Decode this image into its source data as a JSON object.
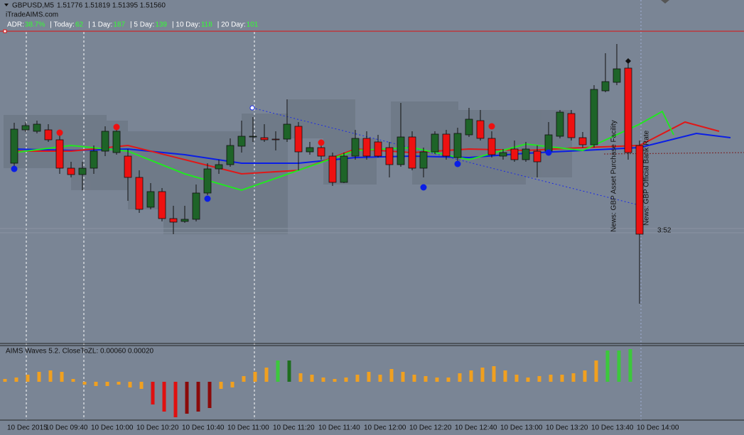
{
  "header": {
    "symbol": "GBPUSD,M5",
    "quote": "1.51776 1.51819 1.51395 1.51560",
    "site": "iTradeAIMS.com",
    "adr": [
      {
        "label": "ADR:",
        "value": "38.7%"
      },
      {
        "label": "|  Today:",
        "value": 62
      },
      {
        "label": "|  1 Day:",
        "value": 187
      },
      {
        "label": "|  5 Day:",
        "value": 139
      },
      {
        "label": "|  10 Day:",
        "value": 118
      },
      {
        "label": "|  20 Day:",
        "value": 101
      }
    ]
  },
  "chart_data": [
    {
      "type": "candlestick",
      "up_color": "#1e6428",
      "down_color": "#ee1111",
      "ylim": [
        1.5139,
        1.51827
      ],
      "categories": [
        "10 Dec 2015",
        null,
        null,
        "10 Dec 09:40",
        null,
        null,
        null,
        "10 Dec 10:00",
        null,
        null,
        null,
        "10 Dec 10:20",
        null,
        null,
        null,
        "10 Dec 10:40",
        null,
        null,
        null,
        "10 Dec 11:00",
        null,
        null,
        null,
        "10 Dec 11:20",
        null,
        null,
        null,
        "10 Dec 11:40",
        null,
        null,
        null,
        "10 Dec 12:00",
        null,
        null,
        null,
        "10 Dec 12:20",
        null,
        null,
        null,
        "10 Dec 12:40",
        null,
        null,
        null,
        "10 Dec 13:00",
        null,
        null,
        null,
        "10 Dec 13:20",
        null,
        null,
        null,
        "10 Dec 13:40",
        null,
        null,
        null,
        "10 Dec 14:00"
      ],
      "ohlc": [
        [
          1.51642,
          1.51699,
          1.51632,
          1.5169
        ],
        [
          1.51689,
          1.517,
          1.51686,
          1.51695
        ],
        [
          1.51687,
          1.51702,
          1.51684,
          1.51697
        ],
        [
          1.51689,
          1.51697,
          1.51672,
          1.51675
        ],
        [
          1.51675,
          1.51684,
          1.51627,
          1.51635
        ],
        [
          1.51635,
          1.51644,
          1.51622,
          1.51626
        ],
        [
          1.51626,
          1.51644,
          1.51604,
          1.51635
        ],
        [
          1.51635,
          1.51667,
          1.51627,
          1.51659
        ],
        [
          1.51659,
          1.51694,
          1.51652,
          1.51687
        ],
        [
          1.51657,
          1.51696,
          1.51654,
          1.51687
        ],
        [
          1.51652,
          1.51662,
          1.51589,
          1.51622
        ],
        [
          1.51622,
          1.51632,
          1.51572,
          1.51577
        ],
        [
          1.5158,
          1.51614,
          1.51577,
          1.51602
        ],
        [
          1.51602,
          1.51607,
          1.5156,
          1.51564
        ],
        [
          1.51564,
          1.51582,
          1.51542,
          1.51559
        ],
        [
          1.5156,
          1.51582,
          1.51558,
          1.51563
        ],
        [
          1.51563,
          1.51612,
          1.5156,
          1.516
        ],
        [
          1.516,
          1.51642,
          1.51597,
          1.51634
        ],
        [
          1.51634,
          1.51647,
          1.51627,
          1.5164
        ],
        [
          1.5164,
          1.51677,
          1.51637,
          1.51667
        ],
        [
          1.51666,
          1.51702,
          1.51657,
          1.5168
        ],
        [
          1.51679,
          1.51707,
          1.51672,
          1.5168
        ],
        [
          1.51678,
          1.51697,
          1.51672,
          1.51675
        ],
        [
          1.51676,
          1.51687,
          1.5166,
          1.51675
        ],
        [
          1.51676,
          1.51732,
          1.51672,
          1.51697
        ],
        [
          1.51694,
          1.517,
          1.51632,
          1.51658
        ],
        [
          1.51658,
          1.51672,
          1.51654,
          1.51664
        ],
        [
          1.51664,
          1.51672,
          1.51647,
          1.51652
        ],
        [
          1.51652,
          1.51657,
          1.5161,
          1.51615
        ],
        [
          1.51615,
          1.51657,
          1.51614,
          1.51652
        ],
        [
          1.51652,
          1.51689,
          1.51647,
          1.51677
        ],
        [
          1.51677,
          1.51687,
          1.51647,
          1.51652
        ],
        [
          1.51672,
          1.51682,
          1.5165,
          1.51652
        ],
        [
          1.51664,
          1.51672,
          1.51622,
          1.5164
        ],
        [
          1.5164,
          1.51727,
          1.51637,
          1.51679
        ],
        [
          1.51679,
          1.51687,
          1.51632,
          1.51635
        ],
        [
          1.51635,
          1.51664,
          1.51622,
          1.51658
        ],
        [
          1.51658,
          1.51687,
          1.51655,
          1.51683
        ],
        [
          1.51683,
          1.51689,
          1.51647,
          1.51652
        ],
        [
          1.5165,
          1.51692,
          1.51644,
          1.51684
        ],
        [
          1.51682,
          1.5172,
          1.51679,
          1.51704
        ],
        [
          1.51702,
          1.51717,
          1.51674,
          1.51677
        ],
        [
          1.51677,
          1.51687,
          1.5165,
          1.51654
        ],
        [
          1.51652,
          1.51662,
          1.51647,
          1.51657
        ],
        [
          1.51662,
          1.51674,
          1.51644,
          1.51647
        ],
        [
          1.51647,
          1.51672,
          1.51644,
          1.51662
        ],
        [
          1.51659,
          1.51667,
          1.51622,
          1.51644
        ],
        [
          1.51659,
          1.517,
          1.51656,
          1.51682
        ],
        [
          1.5168,
          1.51717,
          1.51677,
          1.51714
        ],
        [
          1.51712,
          1.51717,
          1.51674,
          1.51678
        ],
        [
          1.51678,
          1.51686,
          1.51664,
          1.51668
        ],
        [
          1.51668,
          1.51752,
          1.51664,
          1.51746
        ],
        [
          1.51744,
          1.51797,
          1.51742,
          1.51757
        ],
        [
          1.51756,
          1.5181,
          1.51752,
          1.51775
        ],
        [
          1.51776,
          1.51787,
          1.51647,
          1.51657
        ],
        [
          1.51667,
          1.51674,
          1.51444,
          1.51542
        ]
      ],
      "lines": [
        {
          "color": "#0a1ee6",
          "x": [
            0,
            5,
            10,
            15,
            20,
            25,
            30,
            35,
            40,
            45,
            50,
            55,
            60,
            63
          ],
          "values": [
            1.51662,
            1.5166,
            1.51662,
            1.51654,
            1.51642,
            1.51642,
            1.5165,
            1.51652,
            1.5165,
            1.51656,
            1.5166,
            1.51664,
            1.51684,
            1.51678
          ]
        },
        {
          "color": "#e01818",
          "x": [
            0,
            5,
            10,
            15,
            20,
            25,
            30,
            35,
            40,
            45,
            50,
            55,
            59,
            62
          ],
          "values": [
            1.51659,
            1.51659,
            1.51667,
            1.51647,
            1.51627,
            1.51632,
            1.51662,
            1.51657,
            1.51662,
            1.5166,
            1.51664,
            1.51667,
            1.517,
            1.51687
          ]
        },
        {
          "color": "#22e622",
          "x": [
            0,
            5,
            10,
            15,
            20,
            25,
            30,
            35,
            40,
            45,
            50,
            55,
            57,
            58
          ],
          "values": [
            1.51657,
            1.51667,
            1.51659,
            1.51627,
            1.51604,
            1.51632,
            1.5166,
            1.51664,
            1.51647,
            1.51669,
            1.5166,
            1.51697,
            1.51715,
            1.51682
          ]
        }
      ],
      "markers": [
        {
          "color": "#0a1ee6",
          "x": [
            0,
            17,
            36,
            39,
            47
          ],
          "values": [
            1.51634,
            1.51592,
            1.51608,
            1.51641,
            1.51657
          ]
        },
        {
          "color": "#ee1111",
          "x": [
            4,
            9,
            27,
            42
          ],
          "values": [
            1.51685,
            1.51693,
            1.51671,
            1.51694
          ]
        }
      ],
      "annotations": [
        "News: GBP Asset Purchase Facility",
        "News: GBP Official Bank Rate",
        "3:52"
      ]
    },
    {
      "type": "bar",
      "title": "AIMS Waves 5.2. CloseToZL: 0.00060 0.00020",
      "ylim": [
        -0.00052,
        0.00051
      ],
      "values": [
        4e-05,
        6e-05,
        0.0001,
        0.00014,
        0.00016,
        0.00014,
        4e-05,
        -4e-05,
        -6e-05,
        -6e-05,
        -4e-05,
        -8e-05,
        -0.0001,
        -0.00032,
        -0.00042,
        -0.0005,
        -0.00045,
        -0.00042,
        -0.00037,
        -0.0001,
        -8e-05,
        8e-05,
        0.00014,
        0.0002,
        0.0003,
        0.0003,
        0.00012,
        0.0001,
        6e-05,
        4e-05,
        6e-05,
        0.0001,
        0.00014,
        0.0001,
        0.00018,
        0.00014,
        0.0001,
        8e-05,
        6e-05,
        6e-05,
        0.00012,
        0.00016,
        0.0002,
        0.00022,
        0.00016,
        0.0001,
        6e-05,
        8e-05,
        0.0001,
        0.0001,
        0.00012,
        0.00016,
        0.0003,
        0.00044,
        0.00044,
        0.00046
      ],
      "colors": [
        "#f0a020",
        "#f0a020",
        "#f0a020",
        "#f0a020",
        "#f0a020",
        "#f0a020",
        "#f0a020",
        "#f0a020",
        "#f0a020",
        "#f0a020",
        "#f0a020",
        "#f0a020",
        "#f0a020",
        "#e01010",
        "#e01010",
        "#e01010",
        "#8b0a0a",
        "#8b0a0a",
        "#8b0a0a",
        "#f0a020",
        "#f0a020",
        "#f0a020",
        "#f0a020",
        "#f0a020",
        "#3cc83c",
        "#1e6e1e",
        "#f0a020",
        "#f0a020",
        "#f0a020",
        "#f0a020",
        "#f0a020",
        "#f0a020",
        "#f0a020",
        "#f0a020",
        "#f0a020",
        "#f0a020",
        "#f0a020",
        "#f0a020",
        "#f0a020",
        "#f0a020",
        "#f0a020",
        "#f0a020",
        "#f0a020",
        "#f0a020",
        "#f0a020",
        "#f0a020",
        "#f0a020",
        "#f0a020",
        "#f0a020",
        "#f0a020",
        "#f0a020",
        "#f0a020",
        "#f0a020",
        "#3cc83c",
        "#3cc83c",
        "#3cc83c"
      ]
    }
  ]
}
